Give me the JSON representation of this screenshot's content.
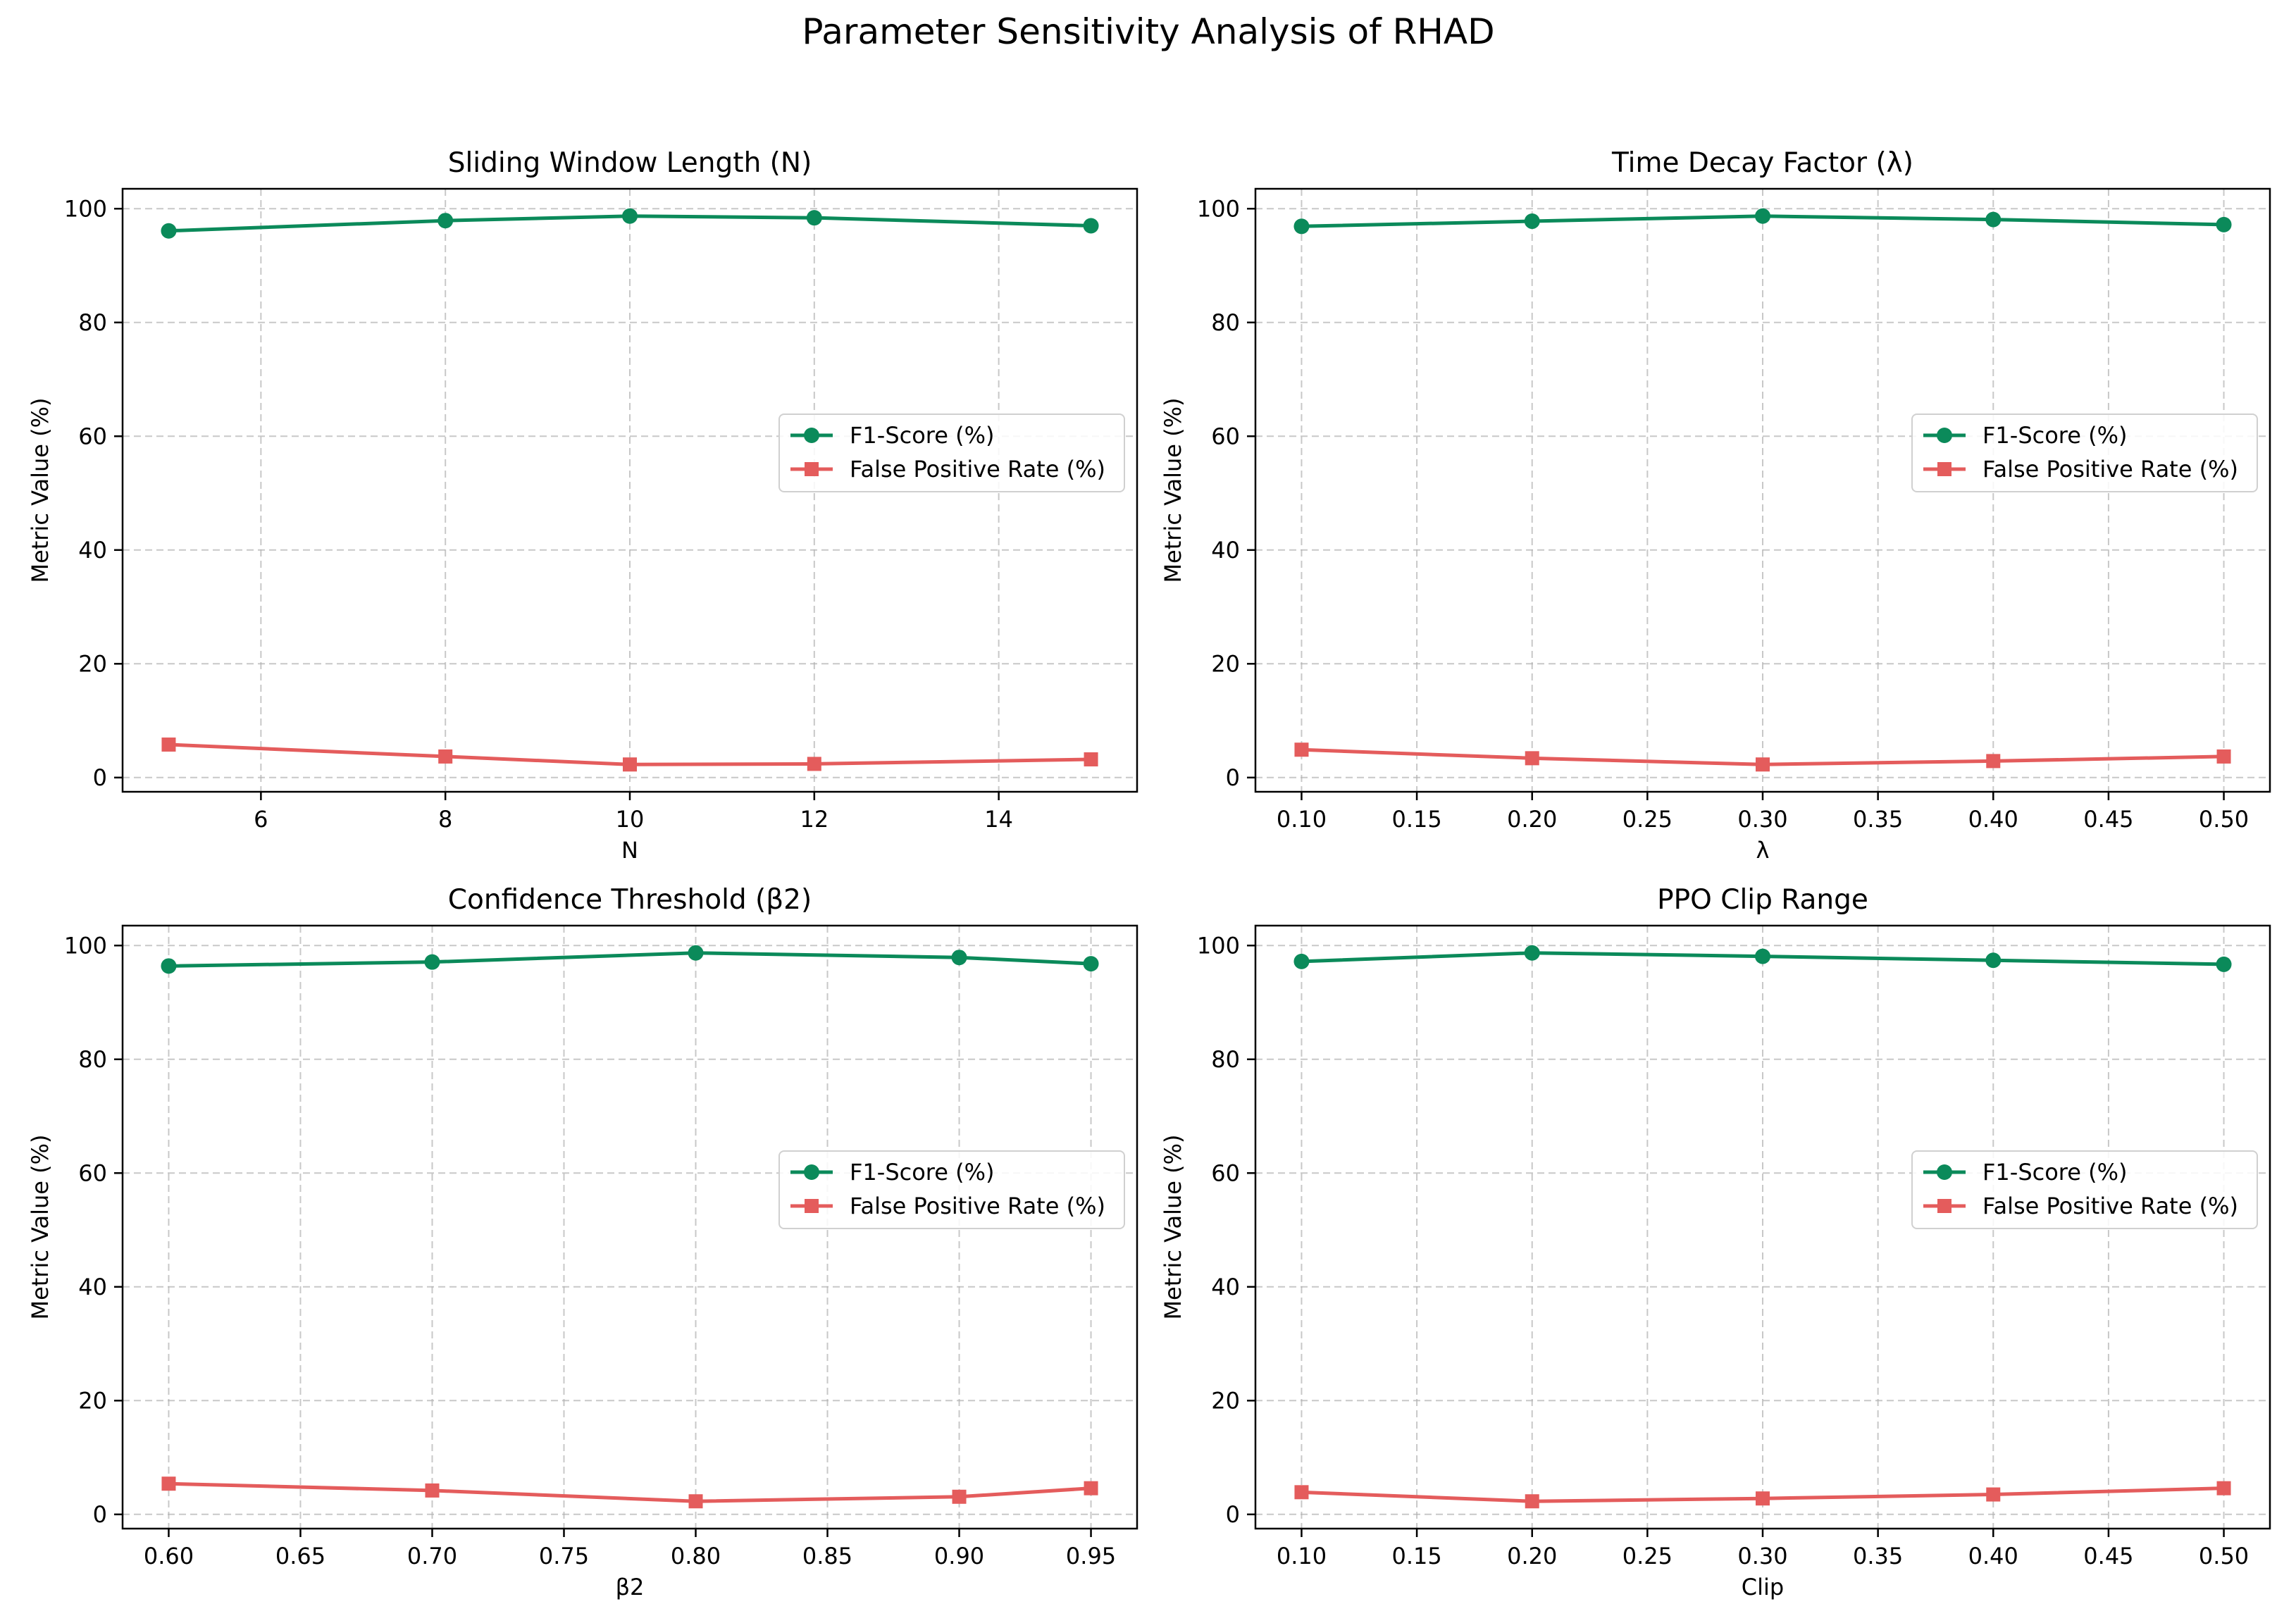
{
  "chart_data": {
    "suptitle": "Parameter Sensitivity Analysis of RHAD",
    "series_style": {
      "f1": {
        "color": "#0b8a5a",
        "marker": "circle"
      },
      "fpr": {
        "color": "#e45c5c",
        "marker": "square"
      }
    },
    "legend": [
      "F1-Score (%)",
      "False Positive Rate (%)"
    ],
    "legend_position": "center-right",
    "panels": [
      {
        "type": "line",
        "title": "Sliding Window Length (N)",
        "xlabel": "N",
        "ylabel": "Metric Value (%)",
        "x": [
          5,
          8,
          10,
          12,
          15
        ],
        "xticks": [
          6,
          8,
          10,
          12,
          14
        ],
        "xtick_labels": [
          "6",
          "8",
          "10",
          "12",
          "14"
        ],
        "xlim": [
          4.5,
          15.5
        ],
        "ylim": [
          -2.5,
          103.5
        ],
        "yticks": [
          0,
          20,
          40,
          60,
          80,
          100
        ],
        "ytick_labels": [
          "0",
          "20",
          "40",
          "60",
          "80",
          "100"
        ],
        "grid": true,
        "series": [
          {
            "name": "F1-Score (%)",
            "key": "f1",
            "values": [
              96.1,
              97.9,
              98.7,
              98.4,
              97.0
            ]
          },
          {
            "name": "False Positive Rate (%)",
            "key": "fpr",
            "values": [
              5.8,
              3.7,
              2.3,
              2.4,
              3.2
            ]
          }
        ]
      },
      {
        "type": "line",
        "title": "Time Decay Factor (λ)",
        "xlabel": "λ",
        "ylabel": "Metric Value (%)",
        "x": [
          0.1,
          0.2,
          0.3,
          0.4,
          0.5
        ],
        "xticks": [
          0.1,
          0.15,
          0.2,
          0.25,
          0.3,
          0.35,
          0.4,
          0.45,
          0.5
        ],
        "xtick_labels": [
          "0.10",
          "0.15",
          "0.20",
          "0.25",
          "0.30",
          "0.35",
          "0.40",
          "0.45",
          "0.50"
        ],
        "xlim": [
          0.08,
          0.52
        ],
        "ylim": [
          -2.5,
          103.5
        ],
        "yticks": [
          0,
          20,
          40,
          60,
          80,
          100
        ],
        "ytick_labels": [
          "0",
          "20",
          "40",
          "60",
          "80",
          "100"
        ],
        "grid": true,
        "series": [
          {
            "name": "F1-Score (%)",
            "key": "f1",
            "values": [
              96.9,
              97.8,
              98.7,
              98.1,
              97.2
            ]
          },
          {
            "name": "False Positive Rate (%)",
            "key": "fpr",
            "values": [
              4.9,
              3.4,
              2.3,
              2.9,
              3.7
            ]
          }
        ]
      },
      {
        "type": "line",
        "title": "Confidence Threshold (β2)",
        "xlabel": "β2",
        "ylabel": "Metric Value (%)",
        "x": [
          0.6,
          0.7,
          0.8,
          0.9,
          0.95
        ],
        "xticks": [
          0.6,
          0.65,
          0.7,
          0.75,
          0.8,
          0.85,
          0.9,
          0.95
        ],
        "xtick_labels": [
          "0.60",
          "0.65",
          "0.70",
          "0.75",
          "0.80",
          "0.85",
          "0.90",
          "0.95"
        ],
        "xlim": [
          0.5825,
          0.9675
        ],
        "ylim": [
          -2.5,
          103.5
        ],
        "yticks": [
          0,
          20,
          40,
          60,
          80,
          100
        ],
        "ytick_labels": [
          "0",
          "20",
          "40",
          "60",
          "80",
          "100"
        ],
        "grid": true,
        "series": [
          {
            "name": "F1-Score (%)",
            "key": "f1",
            "values": [
              96.4,
              97.1,
              98.7,
              97.9,
              96.8
            ]
          },
          {
            "name": "False Positive Rate (%)",
            "key": "fpr",
            "values": [
              5.4,
              4.2,
              2.3,
              3.1,
              4.6
            ]
          }
        ]
      },
      {
        "type": "line",
        "title": "PPO Clip Range",
        "xlabel": "Clip",
        "ylabel": "Metric Value (%)",
        "x": [
          0.1,
          0.2,
          0.3,
          0.4,
          0.5
        ],
        "xticks": [
          0.1,
          0.15,
          0.2,
          0.25,
          0.3,
          0.35,
          0.4,
          0.45,
          0.5
        ],
        "xtick_labels": [
          "0.10",
          "0.15",
          "0.20",
          "0.25",
          "0.30",
          "0.35",
          "0.40",
          "0.45",
          "0.50"
        ],
        "xlim": [
          0.08,
          0.52
        ],
        "ylim": [
          -2.5,
          103.5
        ],
        "yticks": [
          0,
          20,
          40,
          60,
          80,
          100
        ],
        "ytick_labels": [
          "0",
          "20",
          "40",
          "60",
          "80",
          "100"
        ],
        "grid": true,
        "series": [
          {
            "name": "F1-Score (%)",
            "key": "f1",
            "values": [
              97.2,
              98.7,
              98.1,
              97.4,
              96.7
            ]
          },
          {
            "name": "False Positive Rate (%)",
            "key": "fpr",
            "values": [
              3.9,
              2.3,
              2.8,
              3.5,
              4.6
            ]
          }
        ]
      }
    ]
  }
}
